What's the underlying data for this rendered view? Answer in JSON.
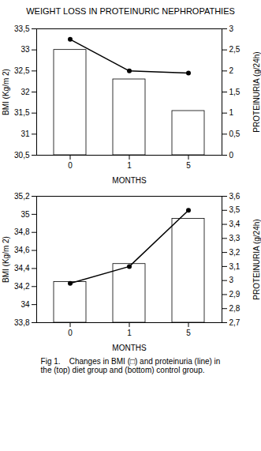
{
  "chart_data": [
    {
      "type": "bar",
      "title": "WEIGHT LOSS IN PROTEINURIC NEPHROPATHIES",
      "categories": [
        "0",
        "1",
        "5"
      ],
      "xlabel": "MONTHS",
      "ylabel": "BMI (Kg/m 2)",
      "y2label": "PROTEINURIA (g/24h)",
      "series": [
        {
          "type": "bar",
          "color": "#ffffff",
          "values": [
            33.0,
            32.3,
            31.55
          ]
        },
        {
          "type": "line",
          "axis": "y2",
          "color": "#000000",
          "marker": "circle",
          "values": [
            2.75,
            2.0,
            1.95
          ]
        }
      ],
      "ylim": [
        30.5,
        33.5
      ],
      "yticks": [
        {
          "value": 30.5,
          "label": "30,5"
        },
        31,
        {
          "value": 31.5,
          "label": "31,5"
        },
        32,
        {
          "value": 32.5,
          "label": "32,5"
        },
        33,
        {
          "value": 33.5,
          "label": "33,5"
        }
      ],
      "y2lim": [
        0,
        3.0
      ],
      "y2ticks": [
        0,
        {
          "value": 0.5,
          "label": "0,5"
        },
        1,
        {
          "value": 1.5,
          "label": "1,5"
        },
        2,
        {
          "value": 2.5,
          "label": "2,5"
        },
        3
      ]
    },
    {
      "type": "bar",
      "categories": [
        "0",
        "1",
        "5"
      ],
      "xlabel": "MONTHS",
      "ylabel": "BMI (Kg/m 2)",
      "y2label": "PROTEINURIA (g/24h)",
      "caption": "Fig 1.    Changes in BMI (□) and proteinuria (line) in\nthe (top) diet group and (bottom) control group.",
      "series": [
        {
          "type": "bar",
          "color": "#ffffff",
          "values": [
            34.25,
            34.45,
            34.95
          ]
        },
        {
          "type": "line",
          "axis": "y2",
          "color": "#000000",
          "marker": "circle",
          "values": [
            2.98,
            3.1,
            3.5
          ]
        }
      ],
      "ylim": [
        33.8,
        35.2
      ],
      "yticks": [
        {
          "value": 33.8,
          "label": "33,8"
        },
        34,
        {
          "value": 34.2,
          "label": "34,2"
        },
        {
          "value": 34.4,
          "label": "34,4"
        },
        {
          "value": 34.6,
          "label": "34,6"
        },
        {
          "value": 34.8,
          "label": "34,8"
        },
        35,
        {
          "value": 35.2,
          "label": "35,2"
        }
      ],
      "y2lim": [
        2.7,
        3.6
      ],
      "y2ticks": [
        {
          "value": 2.7,
          "label": "2,7"
        },
        {
          "value": 2.8,
          "label": "2,8"
        },
        {
          "value": 2.9,
          "label": "2,9"
        },
        3,
        {
          "value": 3.1,
          "label": "3,1"
        },
        {
          "value": 3.2,
          "label": "3,2"
        },
        {
          "value": 3.3,
          "label": "3,3"
        },
        {
          "value": 3.4,
          "label": "3,4"
        },
        {
          "value": 3.5,
          "label": "3,5"
        },
        {
          "value": 3.6,
          "label": "3,6"
        }
      ]
    }
  ]
}
